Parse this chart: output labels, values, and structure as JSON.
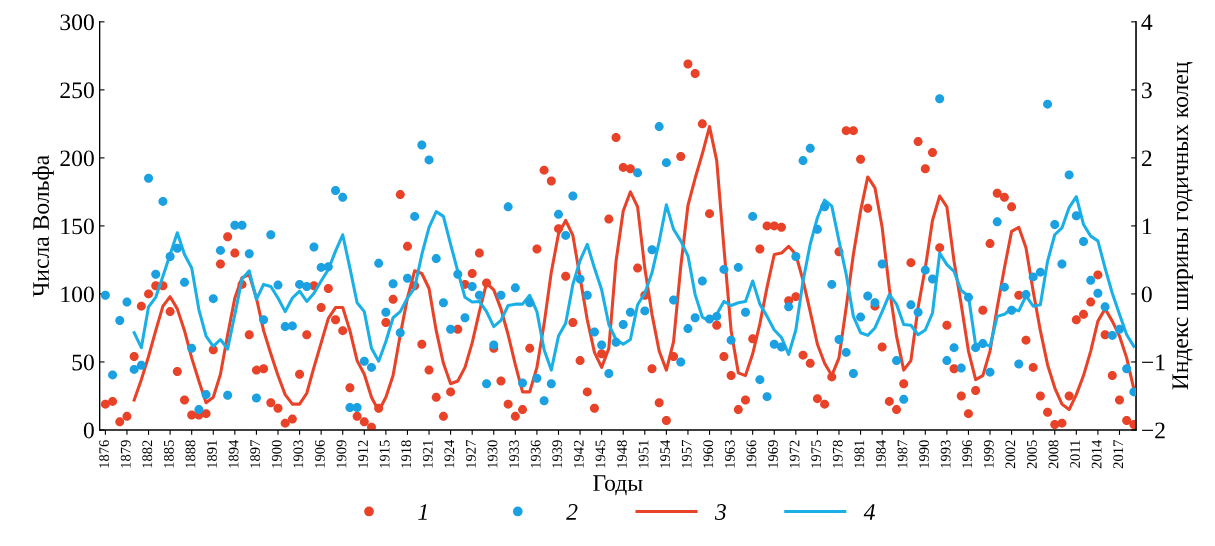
{
  "chart_data": {
    "type": "scatter",
    "xlabel": "Годы",
    "ylabel": "Числа Вольфа",
    "y2label": "Индекс ширины годичных колец",
    "x": [
      1876,
      1877,
      1878,
      1879,
      1880,
      1881,
      1882,
      1883,
      1884,
      1885,
      1886,
      1887,
      1888,
      1889,
      1890,
      1891,
      1892,
      1893,
      1894,
      1895,
      1896,
      1897,
      1898,
      1899,
      1900,
      1901,
      1902,
      1903,
      1904,
      1905,
      1906,
      1907,
      1908,
      1909,
      1910,
      1911,
      1912,
      1913,
      1914,
      1915,
      1916,
      1917,
      1918,
      1919,
      1920,
      1921,
      1922,
      1923,
      1924,
      1925,
      1926,
      1927,
      1928,
      1929,
      1930,
      1931,
      1932,
      1933,
      1934,
      1935,
      1936,
      1937,
      1938,
      1939,
      1940,
      1941,
      1942,
      1943,
      1944,
      1945,
      1946,
      1947,
      1948,
      1949,
      1950,
      1951,
      1952,
      1953,
      1954,
      1955,
      1956,
      1957,
      1958,
      1959,
      1960,
      1961,
      1962,
      1963,
      1964,
      1965,
      1966,
      1967,
      1968,
      1969,
      1970,
      1971,
      1972,
      1973,
      1974,
      1975,
      1976,
      1977,
      1978,
      1979,
      1980,
      1981,
      1982,
      1983,
      1984,
      1985,
      1986,
      1987,
      1988,
      1989,
      1990,
      1991,
      1992,
      1993,
      1994,
      1995,
      1996,
      1997,
      1998,
      1999,
      2000,
      2001,
      2002,
      2003,
      2004,
      2005,
      2006,
      2007,
      2008,
      2009,
      2010,
      2011,
      2012,
      2013,
      2014,
      2015,
      2016,
      2017,
      2018,
      2019
    ],
    "xlim": [
      1875.2,
      2019.3
    ],
    "xticks": [
      1876,
      1879,
      1882,
      1885,
      1888,
      1891,
      1894,
      1897,
      1900,
      1903,
      1906,
      1909,
      1912,
      1915,
      1918,
      1921,
      1924,
      1927,
      1930,
      1933,
      1936,
      1939,
      1942,
      1945,
      1948,
      1951,
      1954,
      1957,
      1960,
      1963,
      1966,
      1969,
      1972,
      1975,
      1978,
      1981,
      1984,
      1987,
      1990,
      1993,
      1996,
      1999,
      2002,
      2005,
      2008,
      2011,
      2014,
      2017
    ],
    "ylim": [
      0,
      300
    ],
    "yticks": [
      0,
      50,
      100,
      150,
      200,
      250,
      300
    ],
    "y2lim": [
      -2,
      4
    ],
    "y2ticks": [
      {
        "value": -2,
        "label": "−2"
      },
      {
        "value": -1,
        "label": "−1"
      },
      0,
      1,
      2,
      3,
      4
    ],
    "grid": false,
    "legend": "bottom",
    "series": [
      {
        "name": "1",
        "marker": "circle",
        "color": "#e84228",
        "values": [
          19,
          21,
          6,
          10,
          54,
          91,
          100,
          106,
          106,
          87,
          43,
          22,
          11,
          11,
          12,
          59,
          122,
          142,
          130,
          107,
          70,
          44,
          45,
          20,
          16,
          5,
          8,
          41,
          70,
          106,
          90,
          104,
          81,
          73,
          31,
          10,
          6,
          2,
          16,
          79,
          96,
          173,
          135,
          106,
          63,
          44,
          24,
          10,
          28,
          74,
          107,
          115,
          130,
          108,
          60,
          36,
          19,
          10,
          15,
          60,
          133,
          191,
          183,
          148,
          113,
          79,
          51,
          28,
          16,
          56,
          155,
          215,
          193,
          192,
          119,
          99,
          45,
          20,
          7,
          54,
          201,
          269,
          262,
          225,
          159,
          77,
          54,
          40,
          15,
          22,
          67,
          133,
          150,
          150,
          149,
          95,
          98,
          55,
          49,
          23,
          19,
          39,
          131,
          220,
          220,
          199,
          163,
          91,
          61,
          21,
          15,
          34,
          123,
          212,
          192,
          204,
          134,
          77,
          45,
          25,
          12,
          29,
          88,
          137,
          174,
          171,
          164,
          99,
          66,
          46,
          25,
          13,
          4,
          5,
          25,
          81,
          85,
          94,
          114,
          70,
          40,
          22,
          7,
          4
        ]
      },
      {
        "name": "2",
        "marker": "circle",
        "axis": "y2",
        "color": "#1ba1e2",
        "values": [
          -0.02,
          -1.19,
          -0.39,
          -0.12,
          -1.11,
          -1.05,
          1.7,
          0.29,
          1.36,
          0.55,
          0.67,
          0.17,
          -0.8,
          -1.7,
          -1.48,
          -0.07,
          0.64,
          -1.49,
          1.01,
          1.01,
          0.59,
          -1.53,
          -0.38,
          0.87,
          0.13,
          -0.48,
          -0.47,
          0.14,
          0.11,
          0.69,
          0.39,
          0.4,
          1.52,
          1.42,
          -1.67,
          -1.67,
          -0.99,
          -1.08,
          0.45,
          -0.27,
          0.15,
          -0.57,
          0.23,
          1.14,
          2.19,
          1.97,
          0.52,
          -0.13,
          -0.52,
          0.29,
          -0.35,
          0.11,
          -0.02,
          -1.32,
          -0.75,
          -0.02,
          1.28,
          0.09,
          -1.31,
          -0.13,
          -1.24,
          -1.57,
          -1.32,
          1.17,
          0.86,
          1.44,
          0.22,
          -0.02,
          -0.56,
          -0.75,
          -1.17,
          -0.71,
          -0.45,
          -0.27,
          1.78,
          -0.25,
          0.65,
          2.46,
          1.93,
          -0.09,
          -1.0,
          -0.51,
          -0.35,
          0.19,
          -0.37,
          -0.33,
          0.36,
          -0.68,
          0.39,
          -0.27,
          1.14,
          -1.26,
          -1.51,
          -0.74,
          -0.78,
          -0.19,
          0.55,
          1.96,
          2.14,
          0.95,
          1.28,
          0.14,
          -0.67,
          -0.86,
          -1.17,
          -0.34,
          -0.03,
          -0.13,
          0.44,
          null,
          -0.98,
          -1.55,
          -0.16,
          -0.27,
          0.35,
          0.22,
          2.87,
          -0.98,
          -0.79,
          -1.09,
          -0.05,
          -0.79,
          -0.73,
          -1.15,
          1.06,
          0.1,
          -0.24,
          -1.03,
          -0.01,
          0.25,
          0.32,
          2.79,
          1.02,
          0.44,
          1.75,
          1.15,
          0.77,
          0.2,
          0.01,
          -0.19,
          -0.61,
          -0.52,
          -1.1,
          -1.44
        ]
      },
      {
        "name": "3",
        "type": "line",
        "marker": "none",
        "line_style": "solid",
        "color": "#e84228",
        "values": [
          null,
          null,
          null,
          null,
          22,
          37,
          54,
          73,
          91,
          98,
          89,
          73,
          53,
          36,
          20,
          24,
          41,
          70,
          97,
          112,
          114,
          97,
          73,
          56,
          40,
          26,
          19,
          19,
          27,
          46,
          64,
          82,
          90,
          90,
          73,
          51,
          41,
          24,
          14,
          24,
          40,
          70,
          97,
          117,
          115,
          104,
          73,
          49,
          34,
          36,
          46,
          64,
          87,
          108,
          103,
          89,
          70,
          48,
          28,
          28,
          46,
          78,
          116,
          144,
          154,
          143,
          112,
          81,
          57,
          46,
          60,
          124,
          161,
          175,
          164,
          119,
          85,
          58,
          44,
          65,
          120,
          165,
          185,
          203,
          223,
          198,
          134,
          73,
          42,
          40,
          56,
          78,
          105,
          129,
          130,
          135,
          129,
          110,
          87,
          63,
          49,
          40,
          53,
          90,
          129,
          161,
          186,
          178,
          149,
          104,
          69,
          44,
          51,
          90,
          119,
          154,
          172,
          164,
          124,
          92,
          58,
          37,
          40,
          58,
          90,
          119,
          146,
          149,
          134,
          102,
          73,
          48,
          31,
          19,
          15,
          26,
          40,
          58,
          80,
          89,
          80,
          69,
          53,
          30
        ]
      },
      {
        "name": "4",
        "type": "line",
        "marker": "none",
        "line_style": "solid",
        "axis": "y2",
        "color": "#1ab0e6",
        "values": [
          null,
          null,
          null,
          null,
          -0.57,
          -0.79,
          -0.19,
          -0.05,
          0.26,
          0.58,
          0.9,
          0.58,
          0.38,
          -0.23,
          -0.62,
          -0.77,
          -0.67,
          -0.81,
          -0.3,
          0.22,
          0.34,
          -0.08,
          0.14,
          0.11,
          -0.06,
          -0.26,
          -0.06,
          0.04,
          -0.11,
          0.01,
          0.19,
          0.36,
          0.63,
          0.87,
          0.38,
          -0.13,
          -0.26,
          -0.8,
          -0.99,
          -0.7,
          -0.35,
          -0.26,
          -0.06,
          0.09,
          0.58,
          0.98,
          1.21,
          1.14,
          0.73,
          0.33,
          -0.05,
          -0.12,
          -0.11,
          -0.26,
          -0.48,
          -0.39,
          -0.17,
          -0.15,
          -0.15,
          -0.02,
          -0.26,
          -0.82,
          -1.12,
          -0.62,
          -0.43,
          0.14,
          0.49,
          0.73,
          0.38,
          0.06,
          -0.45,
          -0.67,
          -0.74,
          -0.67,
          -0.16,
          0.01,
          0.31,
          0.77,
          1.31,
          0.95,
          0.78,
          0.56,
          -0.01,
          -0.34,
          -0.4,
          -0.3,
          -0.11,
          -0.17,
          -0.13,
          -0.11,
          0.19,
          -0.15,
          -0.33,
          -0.53,
          -0.64,
          -0.89,
          -0.53,
          0.19,
          0.73,
          1.12,
          1.38,
          1.29,
          0.78,
          0.29,
          -0.33,
          -0.57,
          -0.61,
          -0.5,
          -0.26,
          -0.01,
          -0.15,
          -0.45,
          -0.46,
          -0.6,
          -0.53,
          -0.28,
          0.6,
          0.43,
          0.33,
          0.05,
          -0.03,
          -0.75,
          -0.72,
          -0.77,
          -0.33,
          -0.3,
          -0.21,
          -0.25,
          -0.03,
          -0.18,
          -0.16,
          0.48,
          0.87,
          0.97,
          1.27,
          1.43,
          1.02,
          0.85,
          0.78,
          0.38,
          0.01,
          -0.3,
          -0.6,
          -0.77
        ]
      }
    ]
  }
}
